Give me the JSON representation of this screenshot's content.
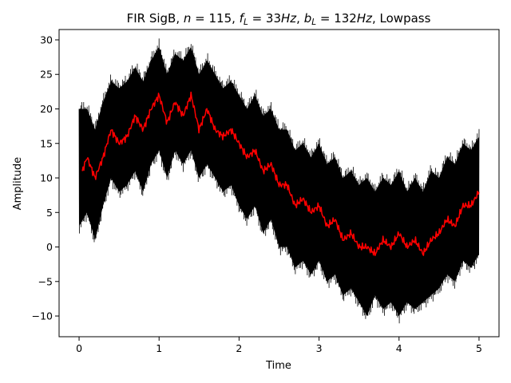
{
  "chart_data": {
    "type": "line",
    "title": "FIR SigB, n =  115, f_L =  33Hz, b_L = 132Hz, Lowpass",
    "title_parts": {
      "prefix": "FIR SigB, ",
      "n_symbol": "n",
      "n_value": " =  115, ",
      "fl_symbol": "f",
      "fl_sub": "L",
      "fl_value": " =  33",
      "fl_unit": "Hz",
      "sep1": ", ",
      "bl_symbol": "b",
      "bl_sub": "L",
      "bl_value": " = 132",
      "bl_unit": "Hz",
      "suffix": ", Lowpass"
    },
    "xlabel": "Time",
    "ylabel": "Amplitude",
    "xlim": [
      -0.25,
      5.25
    ],
    "ylim": [
      -13,
      31.5
    ],
    "xticks": [
      0,
      1,
      2,
      3,
      4,
      5
    ],
    "yticks": [
      -10,
      -5,
      0,
      5,
      10,
      15,
      20,
      25,
      30
    ],
    "grid": false,
    "legend": "none",
    "series": [
      {
        "color": "#000000",
        "role": "raw-signal-envelope",
        "x": [
          0,
          0.1,
          0.2,
          0.3,
          0.4,
          0.5,
          0.6,
          0.7,
          0.8,
          0.9,
          1.0,
          1.1,
          1.2,
          1.3,
          1.4,
          1.5,
          1.6,
          1.7,
          1.8,
          1.9,
          2.0,
          2.1,
          2.2,
          2.3,
          2.4,
          2.5,
          2.6,
          2.7,
          2.8,
          2.9,
          3.0,
          3.1,
          3.2,
          3.3,
          3.4,
          3.5,
          3.6,
          3.7,
          3.8,
          3.9,
          4.0,
          4.1,
          4.2,
          4.3,
          4.4,
          4.5,
          4.6,
          4.7,
          4.8,
          4.9,
          5.0
        ],
        "upper": [
          20,
          20,
          17,
          21,
          24,
          23,
          24,
          26,
          24,
          27,
          29,
          25,
          28,
          27,
          29,
          25,
          27,
          25,
          23,
          24,
          22,
          20,
          22,
          19,
          20,
          17,
          17,
          14,
          15,
          13,
          15,
          12,
          13,
          10,
          11,
          9,
          10,
          8,
          10,
          9,
          11,
          8,
          10,
          8,
          11,
          10,
          13,
          12,
          15,
          14,
          16
        ],
        "lower": [
          3,
          5,
          1,
          6,
          10,
          8,
          9,
          11,
          8,
          12,
          14,
          10,
          14,
          12,
          14,
          10,
          12,
          10,
          8,
          9,
          6,
          4,
          6,
          2,
          4,
          0,
          0,
          -3,
          -2,
          -4,
          -2,
          -5,
          -4,
          -7,
          -6,
          -8,
          -10,
          -7,
          -9,
          -8,
          -10,
          -8,
          -9,
          -8,
          -7,
          -6,
          -4,
          -5,
          -2,
          -3,
          -1
        ]
      },
      {
        "color": "#ff0000",
        "role": "filtered-signal",
        "x": [
          0.04,
          0.1,
          0.2,
          0.3,
          0.4,
          0.5,
          0.6,
          0.7,
          0.8,
          0.9,
          1.0,
          1.1,
          1.2,
          1.3,
          1.4,
          1.5,
          1.6,
          1.7,
          1.8,
          1.9,
          2.0,
          2.1,
          2.2,
          2.3,
          2.4,
          2.5,
          2.6,
          2.7,
          2.8,
          2.9,
          3.0,
          3.1,
          3.2,
          3.3,
          3.4,
          3.5,
          3.6,
          3.7,
          3.8,
          3.9,
          4.0,
          4.1,
          4.2,
          4.3,
          4.4,
          4.5,
          4.6,
          4.7,
          4.8,
          4.9,
          5.0
        ],
        "y": [
          11,
          13,
          10,
          13,
          17,
          15,
          16,
          19,
          17,
          20,
          22,
          18,
          21,
          19,
          22,
          17,
          20,
          17,
          16,
          17,
          15,
          13,
          14,
          11,
          12,
          9,
          9,
          6,
          7,
          5,
          6,
          3,
          4,
          1,
          2,
          0,
          0,
          -1,
          1,
          0,
          2,
          0,
          1,
          -1,
          1,
          2,
          4,
          3,
          6,
          6,
          8
        ]
      }
    ]
  }
}
